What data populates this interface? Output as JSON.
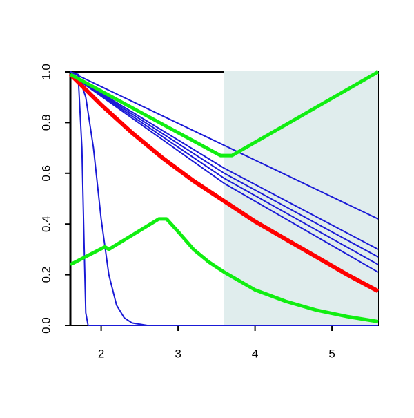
{
  "chart_data": {
    "type": "line",
    "xlim": [
      1.6,
      5.6
    ],
    "ylim": [
      0,
      1
    ],
    "xticks": [
      2,
      3,
      4,
      5
    ],
    "yticks": [
      {
        "value": 0,
        "label": "0.0"
      },
      0.2,
      0.4,
      0.6,
      0.8,
      {
        "value": 1,
        "label": "1.0"
      }
    ],
    "shaded_region": {
      "x": [
        3.6,
        5.6
      ],
      "color": "#e0eded"
    },
    "series": [
      {
        "color": "#1a1ad6",
        "line_width": 2,
        "x": [
          1.6,
          5.6
        ],
        "values": [
          1.0,
          0.42
        ]
      },
      {
        "color": "#1a1ad6",
        "line_width": 2,
        "x": [
          1.6,
          3.6,
          5.6
        ],
        "values": [
          0.99,
          0.62,
          0.3
        ]
      },
      {
        "color": "#1a1ad6",
        "line_width": 2,
        "x": [
          1.6,
          3.6,
          5.6
        ],
        "values": [
          0.99,
          0.6,
          0.27
        ]
      },
      {
        "color": "#1a1ad6",
        "line_width": 2,
        "x": [
          1.6,
          3.6,
          5.6
        ],
        "values": [
          0.99,
          0.58,
          0.24
        ]
      },
      {
        "color": "#1a1ad6",
        "line_width": 2,
        "x": [
          1.6,
          3.6,
          5.6
        ],
        "values": [
          0.99,
          0.56,
          0.21
        ]
      },
      {
        "color": "#1a1ad6",
        "line_width": 2,
        "x": [
          1.6,
          1.7,
          1.75,
          1.78,
          1.8,
          1.83,
          5.6
        ],
        "values": [
          1.0,
          0.99,
          0.7,
          0.3,
          0.05,
          0,
          0
        ]
      },
      {
        "color": "#1a1ad6",
        "line_width": 2,
        "x": [
          1.6,
          1.7,
          1.8,
          1.9,
          2.0,
          2.1,
          2.2,
          2.3,
          2.4,
          2.6,
          5.6
        ],
        "values": [
          1.0,
          0.99,
          0.9,
          0.7,
          0.42,
          0.2,
          0.08,
          0.03,
          0.01,
          0,
          0
        ]
      },
      {
        "color": "#ff0000",
        "line_width": 6,
        "x": [
          1.6,
          2.0,
          2.4,
          2.8,
          3.2,
          3.6,
          4.0,
          4.4,
          4.8,
          5.2,
          5.6
        ],
        "values": [
          0.99,
          0.87,
          0.76,
          0.66,
          0.57,
          0.49,
          0.41,
          0.34,
          0.27,
          0.2,
          0.135
        ]
      },
      {
        "color": "#11ee11",
        "line_width": 5,
        "x": [
          1.6,
          3.55,
          3.7,
          5.6
        ],
        "values": [
          0.99,
          0.67,
          0.67,
          1.0
        ]
      },
      {
        "color": "#11ee11",
        "line_width": 5,
        "x": [
          1.6,
          2.05,
          2.1,
          2.75,
          2.85,
          3.0,
          3.2,
          3.4,
          3.6,
          4.0,
          4.4,
          4.8,
          5.2,
          5.6
        ],
        "values": [
          0.24,
          0.31,
          0.3,
          0.42,
          0.42,
          0.37,
          0.3,
          0.25,
          0.21,
          0.14,
          0.095,
          0.06,
          0.035,
          0.015
        ]
      }
    ]
  }
}
